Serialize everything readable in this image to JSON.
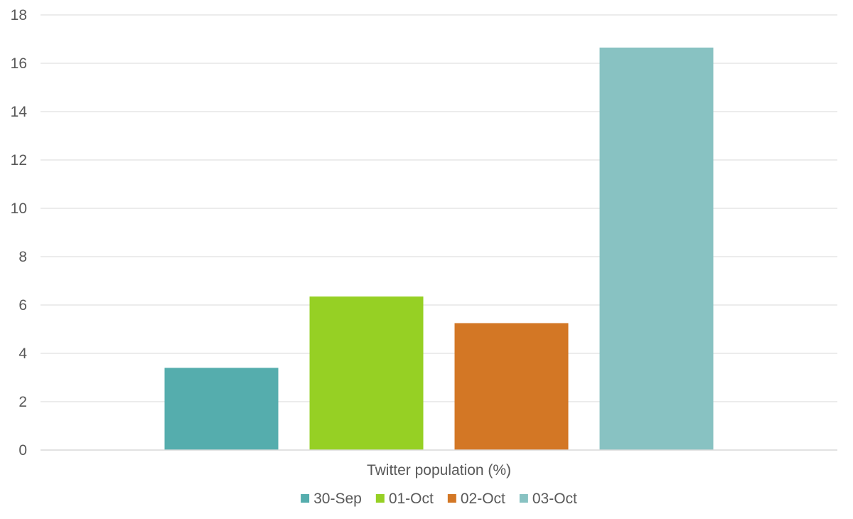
{
  "chart_data": {
    "type": "bar",
    "categories": [
      "Twitter population (%)"
    ],
    "series": [
      {
        "name": "30-Sep",
        "values": [
          3.4
        ],
        "color": "#55adad"
      },
      {
        "name": "01-Oct",
        "values": [
          6.35
        ],
        "color": "#96d024"
      },
      {
        "name": "02-Oct",
        "values": [
          5.25
        ],
        "color": "#d37725"
      },
      {
        "name": "03-Oct",
        "values": [
          16.65
        ],
        "color": "#88c2c2"
      }
    ],
    "title": "",
    "xlabel": "",
    "ylabel": "",
    "ylim": [
      0,
      18
    ],
    "yticks": [
      0,
      2,
      4,
      6,
      8,
      10,
      12,
      14,
      16,
      18
    ],
    "grid": true,
    "legend": "bottom-center"
  }
}
